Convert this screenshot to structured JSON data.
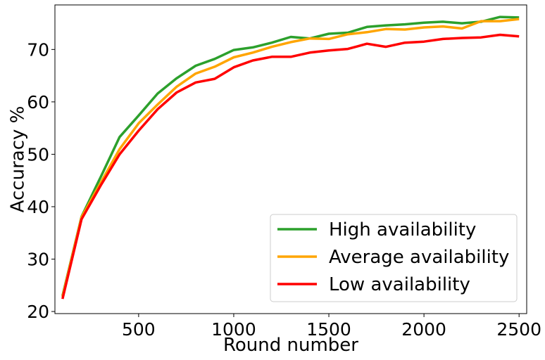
{
  "chart_data": {
    "type": "line",
    "xlabel": "Round number",
    "ylabel": "Accuracy %",
    "xlim": [
      60,
      2540
    ],
    "ylim": [
      19.6,
      78.5
    ],
    "xticks": [
      500,
      1000,
      1500,
      2000,
      2500
    ],
    "yticks": [
      20,
      30,
      40,
      50,
      60,
      70
    ],
    "grid": false,
    "legend_position": "lower-right",
    "x": [
      100,
      200,
      300,
      400,
      500,
      600,
      700,
      800,
      900,
      1000,
      1100,
      1200,
      1300,
      1400,
      1500,
      1600,
      1700,
      1800,
      1900,
      2000,
      2100,
      2200,
      2300,
      2400,
      2500
    ],
    "series": [
      {
        "name": "High availability",
        "color": "#2ca02c",
        "values": [
          23.0,
          38.1,
          45.6,
          53.3,
          57.4,
          61.6,
          64.5,
          66.9,
          68.2,
          69.9,
          70.4,
          71.3,
          72.4,
          72.1,
          73.0,
          73.2,
          74.3,
          74.6,
          74.8,
          75.1,
          75.3,
          75.0,
          75.3,
          76.2,
          76.1
        ]
      },
      {
        "name": "Average availability",
        "color": "#ffa500",
        "values": [
          22.8,
          38.0,
          44.5,
          51.0,
          55.9,
          59.5,
          62.9,
          65.4,
          66.7,
          68.5,
          69.4,
          70.5,
          71.4,
          72.1,
          72.0,
          72.9,
          73.3,
          73.9,
          73.8,
          74.2,
          74.4,
          74.0,
          75.4,
          75.4,
          75.8
        ]
      },
      {
        "name": "Low availability",
        "color": "#ff0000",
        "values": [
          22.4,
          37.6,
          44.0,
          50.0,
          54.5,
          58.6,
          61.8,
          63.7,
          64.4,
          66.6,
          67.9,
          68.6,
          68.6,
          69.4,
          69.8,
          70.1,
          71.1,
          70.5,
          71.3,
          71.5,
          72.0,
          72.2,
          72.3,
          72.8,
          72.5
        ]
      }
    ]
  }
}
